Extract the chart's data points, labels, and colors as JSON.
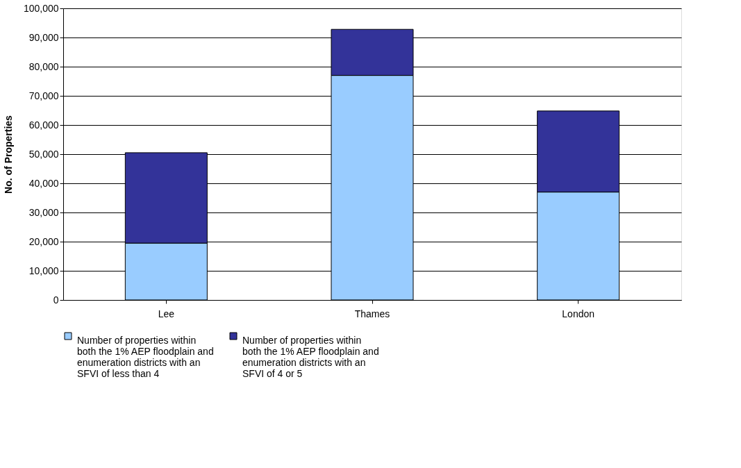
{
  "chart_data": {
    "type": "bar",
    "stacked": true,
    "ylabel": "No. of Properties",
    "categories": [
      "Lee",
      "Thames",
      "London"
    ],
    "series": [
      {
        "name": "Number of properties within both the 1% AEP floodplain and enumeration districts with an SFVI of less than 4",
        "color": "#99ccff",
        "values": [
          19500,
          77000,
          37000
        ]
      },
      {
        "name": "Number of properties within both the 1% AEP floodplain and enumeration districts with an SFVI of 4 or 5",
        "color": "#333399",
        "values": [
          31000,
          15800,
          27800
        ]
      }
    ],
    "ylim": [
      0,
      100000
    ],
    "yticks": [
      {
        "value": 0,
        "label": "0"
      },
      {
        "value": 10000,
        "label": "10,000"
      },
      {
        "value": 20000,
        "label": "20,000"
      },
      {
        "value": 30000,
        "label": "30,000"
      },
      {
        "value": 40000,
        "label": "40,000"
      },
      {
        "value": 50000,
        "label": "50,000"
      },
      {
        "value": 60000,
        "label": "60,000"
      },
      {
        "value": 70000,
        "label": "70,000"
      },
      {
        "value": 80000,
        "label": "80,000"
      },
      {
        "value": 90000,
        "label": "90,000"
      },
      {
        "value": 100000,
        "label": "100,000"
      }
    ],
    "grid": "y",
    "legend": "bottom"
  }
}
